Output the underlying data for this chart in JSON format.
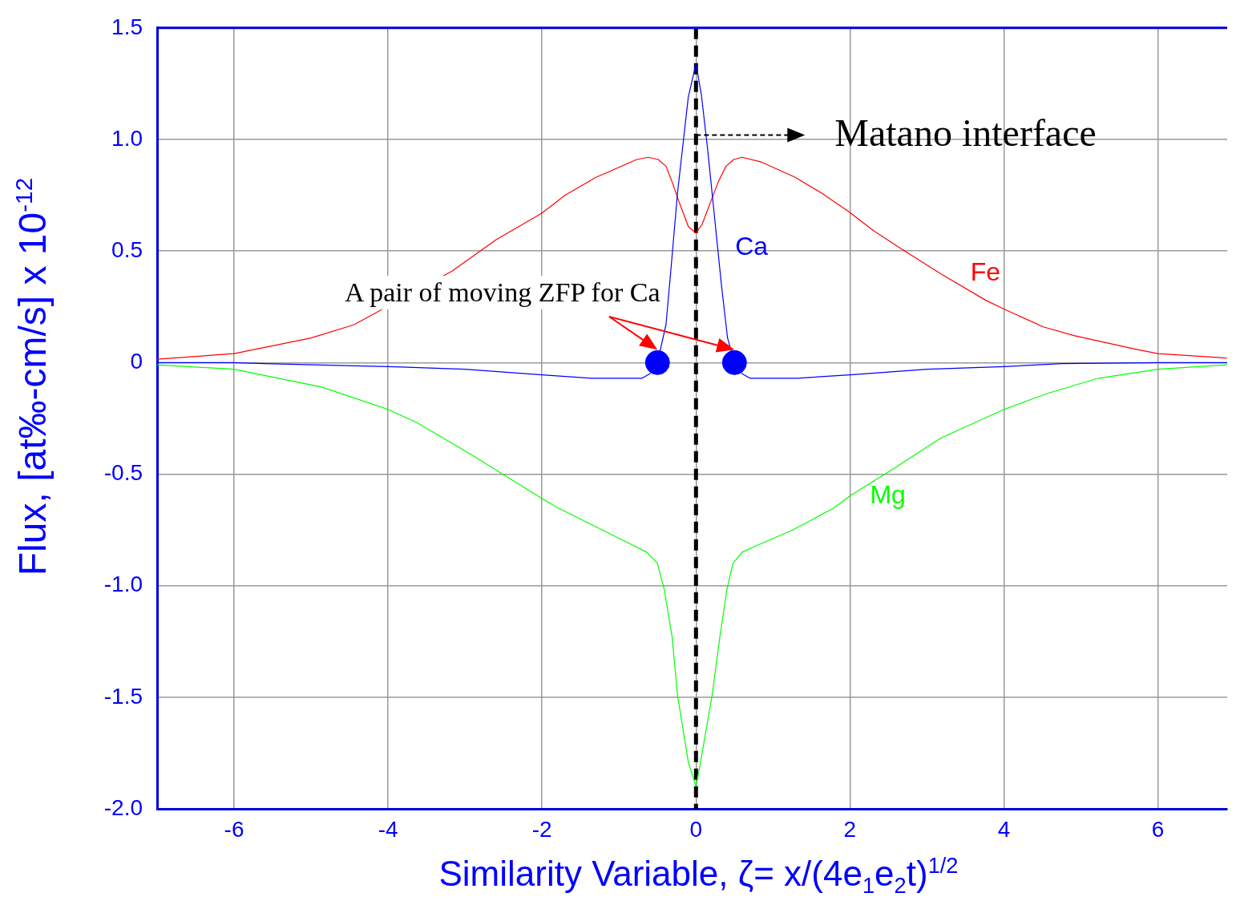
{
  "chart_data": {
    "type": "line",
    "xlabel": "Similarity Variable, ζ= x/(4e$_{1}$e$_{2}$t)$^{1/2}$",
    "ylabel": "Flux, [at‰-cm/s] x 10$^{-12}$",
    "xlim": [
      -7,
      6.9
    ],
    "ylim": [
      -2,
      1.5
    ],
    "xticks": [
      -6,
      -4,
      -2,
      0,
      2,
      4,
      6
    ],
    "yticks": [
      {
        "value": -2,
        "label": "-2.0"
      },
      -1.5,
      {
        "value": -1,
        "label": "-1.0"
      },
      -0.5,
      0,
      0.5,
      {
        "value": 1,
        "label": "1.0"
      },
      1.5
    ],
    "grid": true,
    "marker": "none",
    "line_style": "solid",
    "series": [
      {
        "name": "Ca",
        "color": "#0000ff",
        "x": [
          -7,
          -6,
          -5.6,
          -4,
          -3,
          -2,
          -1.36,
          -0.7,
          -0.6,
          -0.5,
          -0.39,
          -0.33,
          -0.24,
          -0.1,
          0,
          0.07,
          0.15,
          0.28,
          0.33,
          0.41,
          0.5,
          0.6,
          0.7,
          1.32,
          2,
          3,
          4,
          4.75,
          6,
          6.9
        ],
        "values": [
          0,
          0,
          -0.005,
          -0.018,
          -0.03,
          -0.055,
          -0.07,
          -0.07,
          -0.05,
          0,
          0.17,
          0.4,
          0.76,
          1.19,
          1.34,
          1.2,
          0.96,
          0.52,
          0.35,
          0.11,
          0,
          -0.05,
          -0.07,
          -0.07,
          -0.055,
          -0.03,
          -0.018,
          -0.005,
          0,
          0
        ]
      },
      {
        "name": "Fe",
        "color": "#ff0000",
        "x": [
          -7,
          -6,
          -5,
          -4.44,
          -3.17,
          -2.6,
          -2,
          -1.7,
          -1.3,
          -0.77,
          -0.62,
          -0.49,
          -0.39,
          -0.31,
          -0.23,
          -0.1,
          0,
          0.08,
          0.19,
          0.29,
          0.39,
          0.49,
          0.6,
          0.84,
          1.29,
          1.63,
          1.97,
          2.31,
          2.62,
          3.17,
          3.76,
          4,
          4.51,
          4.92,
          5.71,
          6,
          6.9
        ],
        "values": [
          0.015,
          0.04,
          0.11,
          0.17,
          0.41,
          0.55,
          0.67,
          0.75,
          0.83,
          0.91,
          0.92,
          0.91,
          0.88,
          0.81,
          0.73,
          0.61,
          0.58,
          0.62,
          0.72,
          0.81,
          0.88,
          0.91,
          0.92,
          0.9,
          0.83,
          0.76,
          0.68,
          0.59,
          0.52,
          0.4,
          0.28,
          0.24,
          0.16,
          0.12,
          0.06,
          0.04,
          0.02
        ]
      },
      {
        "name": "Mg",
        "color": "#00ff00",
        "x": [
          -7,
          -6,
          -4.86,
          -4,
          -3.62,
          -2.93,
          -2,
          -1.8,
          -0.87,
          -0.64,
          -0.5,
          -0.41,
          -0.31,
          -0.24,
          -0.1,
          0,
          0.05,
          0.21,
          0.31,
          0.4,
          0.48,
          0.6,
          0.79,
          1.26,
          1.8,
          1.99,
          2.59,
          3.17,
          4,
          4.55,
          5.23,
          6,
          6.9
        ],
        "values": [
          -0.01,
          -0.03,
          -0.11,
          -0.21,
          -0.27,
          -0.41,
          -0.61,
          -0.65,
          -0.81,
          -0.85,
          -0.9,
          -1.02,
          -1.23,
          -1.49,
          -1.79,
          -1.9,
          -1.81,
          -1.49,
          -1.23,
          -1.02,
          -0.9,
          -0.85,
          -0.82,
          -0.75,
          -0.65,
          -0.6,
          -0.47,
          -0.34,
          -0.21,
          -0.14,
          -0.07,
          -0.03,
          -0.01
        ]
      },
      {
        "type": "scatter",
        "color": "#0000ff",
        "marker": "circle",
        "x": [
          -0.5,
          0.5
        ],
        "values": [
          0,
          0
        ]
      }
    ],
    "ref_lines": [
      {
        "axis": "x",
        "value": 0,
        "color": "#000000",
        "line_style": "dashed"
      }
    ],
    "annotations": [
      {
        "text": "Matano interface",
        "x": 0,
        "y": 1.02
      },
      "A pair of moving ZFP for Ca"
    ]
  }
}
